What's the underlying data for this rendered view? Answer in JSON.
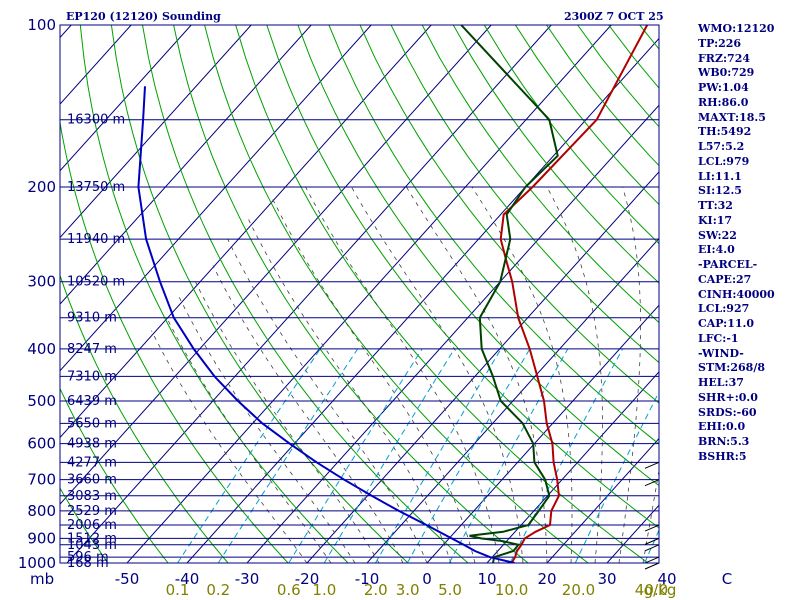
{
  "header": {
    "title": "EP120 (12120) Sounding",
    "valid_time": "2300Z  7 OCT 25"
  },
  "colors": {
    "frame": "#000080",
    "isobar": "#000080",
    "temperature": "#b00000",
    "dewpoint": "#004000",
    "parcel": "#0000c0",
    "dry_adiabat": "#00a000",
    "moist_adiabat": "#404040",
    "mixing_ratio": "#00a0d0",
    "labels": "#000080",
    "bottom_labels": "#808000"
  },
  "indices": [
    "WMO:12120",
    "TP:226",
    "FRZ:724",
    "WB0:729",
    "PW:1.04",
    "RH:86.0",
    "MAXT:18.5",
    "TH:5492",
    "L57:5.2",
    "LCL:979",
    "LI:11.1",
    "SI:12.5",
    "TT:32",
    "KI:17",
    "SW:22",
    "EI:4.0",
    "-PARCEL-",
    "CAPE:27",
    "CINH:40000",
    "LCL:927",
    "CAP:11.0",
    "LFC:-1",
    "-WIND-",
    "STM:268/8",
    "HEL:37",
    "SHR+:0.0",
    "SRDS:-60",
    "EHI:0.0",
    "BRN:5.3",
    "BSHR:5"
  ],
  "chart_data": {
    "type": "skew-t",
    "title": "EP120 (12120) Sounding",
    "xlabel": "°C",
    "ylabel": "mb",
    "pressure_range_mb": [
      1000,
      100
    ],
    "temperature_ticks": [
      "-50",
      "-40",
      "-30",
      "-20",
      "-10",
      "0",
      "10",
      "20",
      "30",
      "40",
      "C"
    ],
    "pressure_tick_labels": [
      "100",
      "200",
      "300",
      "400",
      "500",
      "600",
      "700",
      "800",
      "900",
      "1000"
    ],
    "mixing_ratio_labels": [
      "0.1",
      "0.2",
      "0.6",
      "1.0",
      "2.0",
      "3.0",
      "5.0",
      "10.0",
      "20.0",
      "40.0",
      "g/kg"
    ],
    "mixing_ratio_values": [
      0.1,
      0.2,
      0.6,
      1.0,
      2.0,
      3.0,
      5.0,
      10.0,
      20.0,
      40.0
    ],
    "height_levels": [
      {
        "p": 1000,
        "label": "168 m"
      },
      {
        "p": 975,
        "label": "596 m"
      },
      {
        "p": 925,
        "label": "1043 m"
      },
      {
        "p": 900,
        "label": "1512 m"
      },
      {
        "p": 850,
        "label": "2006 m"
      },
      {
        "p": 800,
        "label": "2529 m"
      },
      {
        "p": 750,
        "label": "3083 m"
      },
      {
        "p": 700,
        "label": "3660 m"
      },
      {
        "p": 650,
        "label": "4277 m"
      },
      {
        "p": 600,
        "label": "4938 m"
      },
      {
        "p": 550,
        "label": "5650 m"
      },
      {
        "p": 500,
        "label": "6439 m"
      },
      {
        "p": 450,
        "label": "7310 m"
      },
      {
        "p": 400,
        "label": "8247 m"
      },
      {
        "p": 350,
        "label": "9310 m"
      },
      {
        "p": 300,
        "label": "10520 m"
      },
      {
        "p": 250,
        "label": "11940 m"
      },
      {
        "p": 200,
        "label": "13750 m"
      },
      {
        "p": 150,
        "label": "16300 m"
      }
    ],
    "series": [
      {
        "name": "Temperature",
        "points": [
          [
            1000,
            14.1
          ],
          [
            975,
            13.8
          ],
          [
            950,
            13.2
          ],
          [
            925,
            13.0
          ],
          [
            900,
            12.6
          ],
          [
            875,
            13.4
          ],
          [
            850,
            14.8
          ],
          [
            800,
            12.9
          ],
          [
            750,
            11.9
          ],
          [
            700,
            9.2
          ],
          [
            650,
            6.0
          ],
          [
            600,
            3.0
          ],
          [
            550,
            -1.0
          ],
          [
            500,
            -4.8
          ],
          [
            450,
            -9.6
          ],
          [
            400,
            -15.0
          ],
          [
            350,
            -21.6
          ],
          [
            300,
            -28.0
          ],
          [
            275,
            -32.0
          ],
          [
            250,
            -36.3
          ],
          [
            225,
            -39.5
          ],
          [
            200,
            -38.8
          ],
          [
            150,
            -38.2
          ],
          [
            100,
            -44.0
          ]
        ]
      },
      {
        "name": "Dewpoint",
        "points": [
          [
            1000,
            11.0
          ],
          [
            975,
            10.3
          ],
          [
            950,
            12.6
          ],
          [
            925,
            12.5
          ],
          [
            910,
            9.2
          ],
          [
            900,
            5.3
          ],
          [
            890,
            3.0
          ],
          [
            875,
            8.0
          ],
          [
            850,
            11.2
          ],
          [
            800,
            10.8
          ],
          [
            750,
            10.3
          ],
          [
            700,
            7.2
          ],
          [
            650,
            2.8
          ],
          [
            600,
            -0.2
          ],
          [
            550,
            -5.0
          ],
          [
            500,
            -12.0
          ],
          [
            450,
            -17.0
          ],
          [
            400,
            -23.0
          ],
          [
            350,
            -28.0
          ],
          [
            300,
            -30.0
          ],
          [
            250,
            -34.7
          ],
          [
            225,
            -39.0
          ],
          [
            200,
            -40.0
          ],
          [
            175,
            -39.3
          ],
          [
            150,
            -46.1
          ],
          [
            100,
            -75.0
          ]
        ]
      },
      {
        "name": "Parcel",
        "points": [
          [
            1000,
            14.6
          ],
          [
            975,
            9.6
          ],
          [
            950,
            6.2
          ],
          [
            925,
            3.4
          ],
          [
            900,
            0.4
          ],
          [
            850,
            -5.8
          ],
          [
            800,
            -12.5
          ],
          [
            750,
            -19.3
          ],
          [
            700,
            -26.3
          ],
          [
            650,
            -33.5
          ],
          [
            600,
            -40.8
          ],
          [
            550,
            -48.4
          ],
          [
            500,
            -55.8
          ],
          [
            450,
            -63.4
          ],
          [
            400,
            -71.0
          ],
          [
            350,
            -79.0
          ],
          [
            300,
            -86.7
          ],
          [
            250,
            -95.4
          ],
          [
            200,
            -104.5
          ],
          [
            150,
            -113.8
          ],
          [
            130,
            -118.5
          ]
        ]
      }
    ],
    "wind_barbs_mb": [
      650,
      700,
      850,
      900,
      925,
      975,
      1000
    ]
  }
}
